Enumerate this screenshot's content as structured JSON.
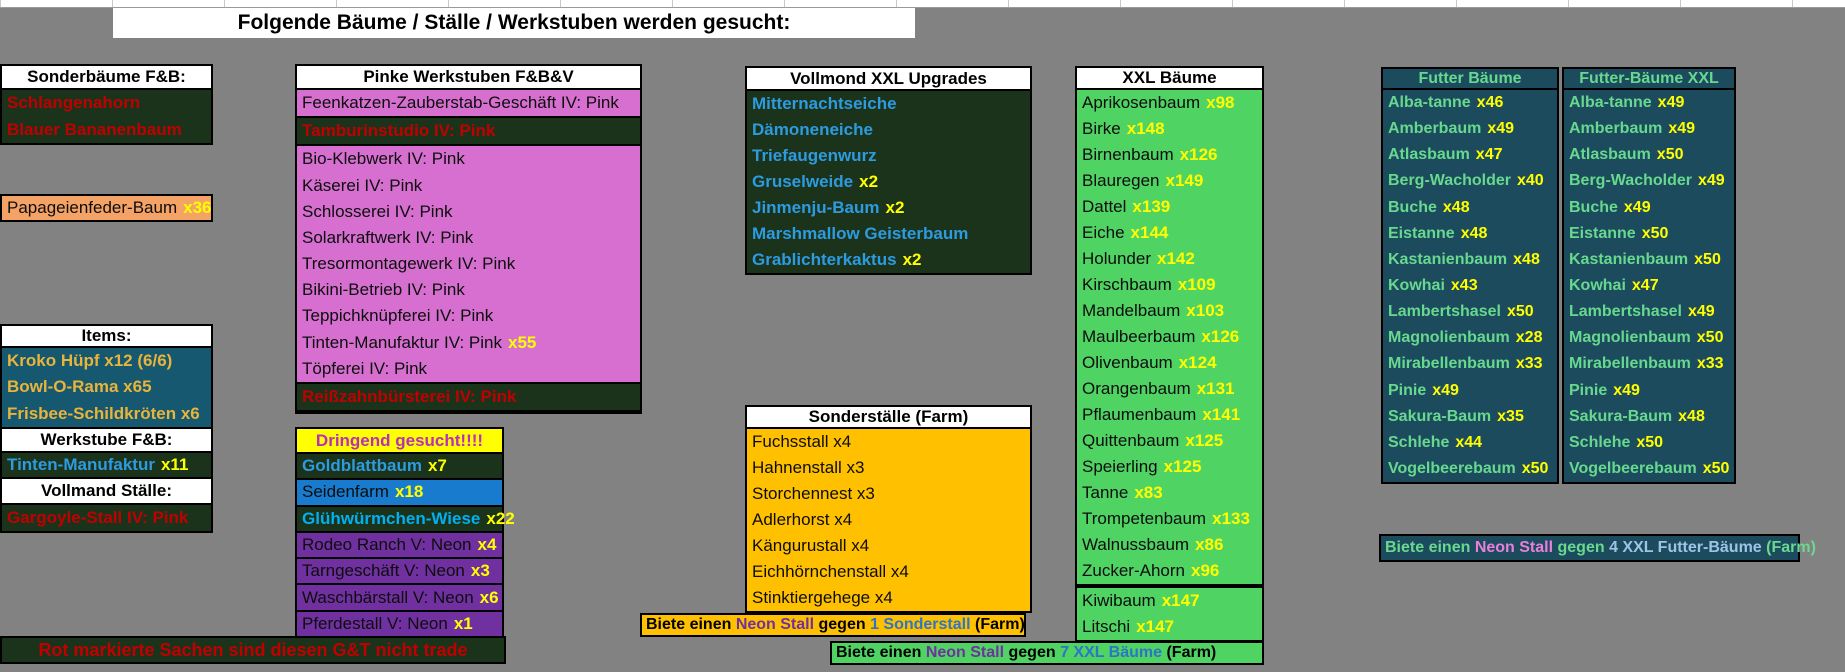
{
  "title": "Folgende Bäume / Ställe / Werkstuben werden gesucht:",
  "left": {
    "sonderbaeume_header": "Sonderbäume F&B:",
    "sonderbaeume": [
      {
        "name": "Schlangenahorn",
        "cls": "red"
      },
      {
        "name": "Blauer Bananenbaum",
        "cls": "red"
      }
    ],
    "papageienfeder": [
      {
        "name": "Papageienfeder-Baum",
        "count": "x36"
      }
    ],
    "items_header": "Items:",
    "items": [
      {
        "name": "Kroko Hüpf x12 (6/6)"
      },
      {
        "name": "Bowl-O-Rama x65"
      },
      {
        "name": "Frisbee-Schildkröten x6"
      }
    ],
    "werkstube_header": "Werkstube F&B:",
    "werkstube": [
      {
        "name": "Tinten-Manufaktur",
        "count": "x11"
      }
    ],
    "vollmand_header": "Vollmand Ställe:",
    "vollmand": [
      {
        "name": "Gargoyle-Stall IV: Pink",
        "cls": "red"
      }
    ],
    "trade_note": "Rot markierte Sachen sind diesen G&T nicht trade"
  },
  "pink_werkstuben": {
    "header": "Pinke Werkstuben F&B&V",
    "rows": [
      {
        "name": "Feenkatzen-Zauberstab-Geschäft IV: Pink"
      },
      {
        "name": "Tamburinstudio IV: Pink",
        "cls": "notrade"
      },
      {
        "name": "Bio-Klebwerk IV: Pink"
      },
      {
        "name": "Käserei IV: Pink"
      },
      {
        "name": "Schlosserei IV: Pink"
      },
      {
        "name": "Solarkraftwerk IV: Pink"
      },
      {
        "name": "Tresormontagewerk IV: Pink"
      },
      {
        "name": "Bikini-Betrieb IV: Pink"
      },
      {
        "name": "Teppichknüpferei IV: Pink"
      },
      {
        "name": "Tinten-Manufaktur IV: Pink",
        "count": "x55"
      },
      {
        "name": "Töpferei IV: Pink"
      },
      {
        "name": "Reißzahnbürsterei IV: Pink",
        "cls": "notrade"
      }
    ]
  },
  "dringend": {
    "header": "Dringend gesucht!!!!",
    "rows": [
      {
        "name": "Goldblattbaum",
        "count": "x7",
        "cls": "dg-blue"
      },
      {
        "name": "Seidenfarm",
        "count": "x18",
        "cls": "blue-row"
      },
      {
        "name": "Glühwürmchen-Wiese",
        "count": "x22",
        "cls": "dg-cyan"
      },
      {
        "name": "Rodeo Ranch V: Neon",
        "count": "x4",
        "cls": "purple-row"
      },
      {
        "name": "Tarngeschäft V: Neon",
        "count": "x3",
        "cls": "purple-row"
      },
      {
        "name": "Waschbärstall V: Neon",
        "count": "x6",
        "cls": "purple-row"
      },
      {
        "name": "Pferdestall V: Neon",
        "count": "x1",
        "cls": "purple-row"
      }
    ]
  },
  "vollmond": {
    "header": "Vollmond XXL Upgrades",
    "rows": [
      {
        "name": "Mitternachtseiche"
      },
      {
        "name": "Dämoneneiche"
      },
      {
        "name": "Triefaugenwurz"
      },
      {
        "name": "Gruselweide",
        "count": "x2"
      },
      {
        "name": "Jinmenju-Baum",
        "count": "x2"
      },
      {
        "name": "Marshmallow Geisterbaum"
      },
      {
        "name": "Grablichterkaktus",
        "count": "x2"
      }
    ]
  },
  "sonderstaelle": {
    "header": "Sonderställe (Farm)",
    "rows": [
      {
        "name": "Fuchsstall x4"
      },
      {
        "name": "Hahnenstall x3"
      },
      {
        "name": "Storchennest x3"
      },
      {
        "name": "Adlerhorst x4"
      },
      {
        "name": "Kängurustall x4"
      },
      {
        "name": "Eichhörnchenstall x4"
      },
      {
        "name": "Stinktiergehege x4"
      }
    ]
  },
  "xxl_baeume": {
    "header": "XXL Bäume",
    "rows": [
      {
        "name": "Aprikosenbaum",
        "count": "x98"
      },
      {
        "name": "Birke",
        "count": "x148"
      },
      {
        "name": "Birnenbaum",
        "count": "x126"
      },
      {
        "name": "Blauregen",
        "count": "x149"
      },
      {
        "name": "Dattel",
        "count": "x139"
      },
      {
        "name": "Eiche",
        "count": "x144"
      },
      {
        "name": "Holunder",
        "count": "x142"
      },
      {
        "name": "Kirschbaum",
        "count": "x109"
      },
      {
        "name": "Mandelbaum",
        "count": "x103"
      },
      {
        "name": "Maulbeerbaum",
        "count": "x126"
      },
      {
        "name": "Olivenbaum",
        "count": "x124"
      },
      {
        "name": "Orangenbaum",
        "count": "x131"
      },
      {
        "name": "Pflaumenbaum",
        "count": "x141"
      },
      {
        "name": "Quittenbaum",
        "count": "x125"
      },
      {
        "name": "Speierling",
        "count": "x125"
      },
      {
        "name": "Tanne",
        "count": "x83"
      },
      {
        "name": "Trompetenbaum",
        "count": "x133"
      },
      {
        "name": "Walnussbaum",
        "count": "x86"
      },
      {
        "name": "Zucker-Ahorn",
        "count": "x96"
      }
    ],
    "extra_rows": [
      {
        "name": "Kiwibaum",
        "count": "x147"
      },
      {
        "name": "Litschi",
        "count": "x147"
      }
    ]
  },
  "futter": {
    "header": "Futter Bäume",
    "rows": [
      {
        "name": "Alba-tanne",
        "count": "x46"
      },
      {
        "name": "Amberbaum",
        "count": "x49"
      },
      {
        "name": "Atlasbaum",
        "count": "x47"
      },
      {
        "name": "Berg-Wacholder",
        "count": "x40"
      },
      {
        "name": "Buche",
        "count": "x48"
      },
      {
        "name": "Eistanne",
        "count": "x48"
      },
      {
        "name": "Kastanienbaum",
        "count": "x48"
      },
      {
        "name": "Kowhai",
        "count": "x43"
      },
      {
        "name": "Lambertshasel",
        "count": "x50"
      },
      {
        "name": "Magnolienbaum",
        "count": "x28"
      },
      {
        "name": "Mirabellenbaum",
        "count": "x33"
      },
      {
        "name": "Pinie",
        "count": "x49"
      },
      {
        "name": "Sakura-Baum",
        "count": "x35"
      },
      {
        "name": "Schlehe",
        "count": "x44"
      },
      {
        "name": "Vogelbeerebaum",
        "count": "x50"
      }
    ]
  },
  "futter_xxl": {
    "header": "Futter-Bäume XXL",
    "rows": [
      {
        "name": "Alba-tanne",
        "count": "x49"
      },
      {
        "name": "Amberbaum",
        "count": "x49"
      },
      {
        "name": "Atlasbaum",
        "count": "x50"
      },
      {
        "name": "Berg-Wacholder",
        "count": "x49"
      },
      {
        "name": "Buche",
        "count": "x49"
      },
      {
        "name": "Eistanne",
        "count": "x50"
      },
      {
        "name": "Kastanienbaum",
        "count": "x50"
      },
      {
        "name": "Kowhai",
        "count": "x47"
      },
      {
        "name": "Lambertshasel",
        "count": "x49"
      },
      {
        "name": "Magnolienbaum",
        "count": "x50"
      },
      {
        "name": "Mirabellenbaum",
        "count": "x33"
      },
      {
        "name": "Pinie",
        "count": "x49"
      },
      {
        "name": "Sakura-Baum",
        "count": "x48"
      },
      {
        "name": "Schlehe",
        "count": "x50"
      },
      {
        "name": "Vogelbeerebaum",
        "count": "x50"
      }
    ]
  },
  "offers": {
    "sonderstall": {
      "segments": [
        {
          "t": "Biete einen ",
          "c": "#000000"
        },
        {
          "t": "Neon Stall",
          "c": "#7030a0"
        },
        {
          "t": " gegen ",
          "c": "#000000"
        },
        {
          "t": "1 Sonderstall",
          "c": "#2e75c6"
        },
        {
          "t": " (Farm)",
          "c": "#000000"
        }
      ]
    },
    "xxl": {
      "segments": [
        {
          "t": "Biete einen ",
          "c": "#000000"
        },
        {
          "t": "Neon Stall",
          "c": "#7030a0"
        },
        {
          "t": " gegen ",
          "c": "#000000"
        },
        {
          "t": "7 XXL Bäume",
          "c": "#2e75c6"
        },
        {
          "t": " (Farm)",
          "c": "#000000"
        }
      ]
    },
    "futter": {
      "segments": [
        {
          "t": "Biete einen ",
          "c": "#6ad98f"
        },
        {
          "t": "Neon Stall",
          "c": "#e87fd9"
        },
        {
          "t": " gegen ",
          "c": "#6ad98f"
        },
        {
          "t": "4 XXL Futter-Bäume",
          "c": "#9dc3e6"
        },
        {
          "t": " (Farm)",
          "c": "#6ad98f"
        }
      ]
    }
  }
}
